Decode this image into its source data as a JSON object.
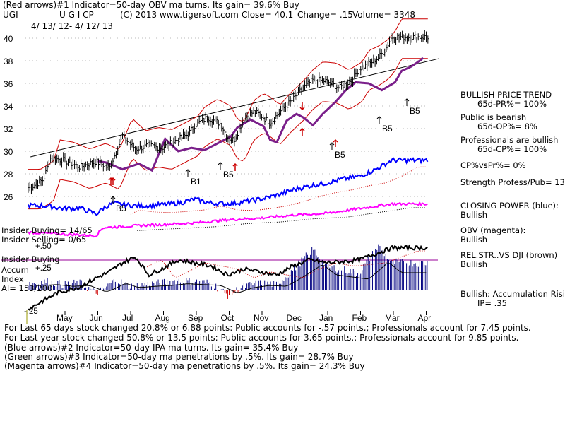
{
  "chart_data": {
    "type": "line",
    "title": "(Red arrows)#1 Indicator=50-day OBV ma turns. Its gain= 39.6% Buy",
    "ticker": "UGI",
    "header": "U G I CP",
    "copyright": "(C) 2013 www.tigersoft.com",
    "close_text": "Close=  40.1",
    "change_text": "Change= .15",
    "volume_text": "Volume= 3348",
    "date_range": "4/ 13/ 12- 4/ 12/ 13",
    "x_tick_labels": [
      "May",
      "Jun",
      "Jul",
      "Aug",
      "Sep",
      "Oct",
      "Nov",
      "Dec",
      "Jan",
      "Feb",
      "Mar",
      "Apr"
    ],
    "y_tick_labels": [
      "40",
      "38",
      "36",
      "34",
      "32",
      "30",
      "28",
      "26"
    ],
    "ylim": [
      25,
      41
    ],
    "price": {
      "months": [
        0,
        0.4,
        0.6,
        1,
        1.5,
        2,
        2.4,
        2.8,
        3.2,
        3.6,
        4,
        4.4,
        4.8,
        5,
        5.4,
        5.8,
        6,
        6.2,
        6.5,
        6.8,
        7,
        7.3,
        7.6,
        8,
        8.3,
        8.6,
        9,
        9.4,
        9.8,
        10,
        10.3,
        10.6,
        10.8,
        11
      ],
      "close": [
        26.8,
        27.5,
        29.4,
        29.2,
        28.6,
        29.1,
        28.5,
        31.3,
        30.2,
        30.5,
        30.3,
        30.9,
        31.5,
        32.3,
        33.0,
        32.4,
        31.2,
        31.0,
        32.9,
        33.5,
        33.2,
        32.5,
        33.5,
        34.6,
        35.6,
        36.3,
        36.2,
        35.6,
        36.3,
        37.3,
        37.7,
        38.3,
        39.0,
        40.1
      ]
    },
    "series": [
      {
        "name": "Upper band",
        "color": "#cc0000"
      },
      {
        "name": "Lower band",
        "color": "#cc0000"
      },
      {
        "name": "65-day MA",
        "color": "#7a1f8a"
      },
      {
        "name": "Closing Power",
        "color": "#0000ff"
      },
      {
        "name": "OBV",
        "color": "#ff00ff"
      },
      {
        "name": "Rel. Strength vs DJI",
        "color": "#000000"
      },
      {
        "name": "Accumulation Index",
        "color": "#000080"
      }
    ],
    "closing_power": {
      "months": [
        0,
        0.5,
        1,
        1.5,
        2,
        2.2,
        2.5,
        3,
        3.5,
        4,
        4.5,
        5,
        5.5,
        6,
        6.5,
        7,
        7.5,
        8,
        8.5,
        9,
        9.5,
        10,
        10.5,
        11
      ],
      "values": [
        0.72,
        0.7,
        0.6,
        0.62,
        0.4,
        0.6,
        0.8,
        0.72,
        0.7,
        0.75,
        0.8,
        0.95,
        0.8,
        0.78,
        0.85,
        0.95,
        1.1,
        1.3,
        1.45,
        1.55,
        1.7,
        1.8,
        2.05,
        2.4
      ]
    },
    "obv": {
      "months": [
        0,
        1,
        2,
        2.2,
        3,
        4,
        5,
        6,
        7,
        8,
        9,
        10,
        11
      ],
      "values": [
        0.2,
        0.15,
        0.1,
        0.35,
        0.4,
        0.45,
        0.5,
        0.6,
        0.65,
        0.75,
        0.8,
        0.95,
        1.1
      ]
    },
    "rel_strength": {
      "months": [
        0,
        0.8,
        1.5,
        2,
        2.4,
        2.8,
        3.2,
        3.6,
        4,
        4.5,
        5,
        5.5,
        6,
        6.5,
        7,
        7.5,
        8,
        8.5,
        9,
        9.5,
        10,
        10.5,
        11
      ],
      "values": [
        0.05,
        0.3,
        0.4,
        0.55,
        0.65,
        0.8,
        0.9,
        0.6,
        0.7,
        0.85,
        0.8,
        0.75,
        0.6,
        0.7,
        0.65,
        0.6,
        0.75,
        0.85,
        0.8,
        0.82,
        0.85,
        0.95,
        1.05
      ]
    },
    "accum_index": {
      "months": [
        0,
        0.5,
        1,
        1.5,
        2,
        2.2,
        2.6,
        3,
        3.5,
        4,
        4.5,
        5,
        5.5,
        6,
        6.5,
        7,
        7.5,
        8,
        8.3,
        8.6,
        9,
        9.5,
        10,
        10.3,
        10.6,
        11
      ],
      "values": [
        0.1,
        0.12,
        0.08,
        0.1,
        -0.05,
        0.0,
        0.15,
        0.05,
        0.08,
        0.1,
        0.14,
        0.12,
        0.1,
        -0.08,
        0.05,
        0.1,
        0.08,
        0.3,
        0.45,
        0.6,
        0.35,
        0.3,
        0.25,
        0.45,
        0.65,
        0.4
      ]
    },
    "signals": [
      {
        "label": "B1"
      },
      {
        "label": "B5"
      },
      {
        "label": "B5"
      },
      {
        "label": "B5"
      },
      {
        "label": "B5"
      },
      {
        "label": "B5"
      }
    ],
    "accum_ticks": [
      "+.50",
      "+.25",
      "-.25"
    ]
  },
  "right_panel": {
    "trend_title": "BULLISH PRICE TREND",
    "trend_value": "65d-PR%= 100%",
    "public_title": "Public is bearish",
    "public_value": "65d-OP%= 8%",
    "pros_title": "Professionals are bullish",
    "pros_value": "65d-CP%= 100%",
    "cp_vs_pr": "CP%vsPr%=  0%",
    "strength": "Strength Profess/Pub= 13",
    "closing_power_label": "CLOSING POWER (blue):",
    "closing_power_value": "Bullish",
    "obv_label": "OBV (magenta):",
    "obv_value": "Bullish",
    "relstr_label": "REL.STR..VS DJI (brown)",
    "relstr_value": "Bullish",
    "accum_label": "Bullish: Accumulation Risi",
    "ip_value": "IP=  .35"
  },
  "insider": {
    "buying": "Insider Buying= 14/65",
    "selling": "Insider Selling= 0/65",
    "buying_line": "Insider Buying",
    "accum": "Accum",
    "index": "Index",
    "ai": "AI= 153/200"
  },
  "footer": {
    "line1": "For Last 65 days stock changed  20.8% or  6.88 points:  Public accounts for -.57 points.;  Professionals account for  7.45 points.",
    "line2": "For Last year stock changed  50.8% or  13.5 points:  Public accounts for  3.65 points.;  Professionals account for  9.85 points.",
    "line3": "(Blue arrows)#2 Indicator=50-day IPA ma turns. Its gain= 35.4% Buy",
    "line4": "(Green arrows)#3 Indicator=50-day ma penetrations by .5%. Its gain= 28.7% Buy",
    "line5": "(Magenta arrows)#4 Indicator=50-day ma penetrations by .5%. Its gain= 24.3% Buy"
  },
  "colors": {
    "price": "#000000",
    "bands": "#cc0000",
    "ma": "#7a1f8a",
    "closing_power": "#0000ff",
    "obv": "#ff00ff",
    "accum": "#000080",
    "insider_line": "#990099"
  }
}
